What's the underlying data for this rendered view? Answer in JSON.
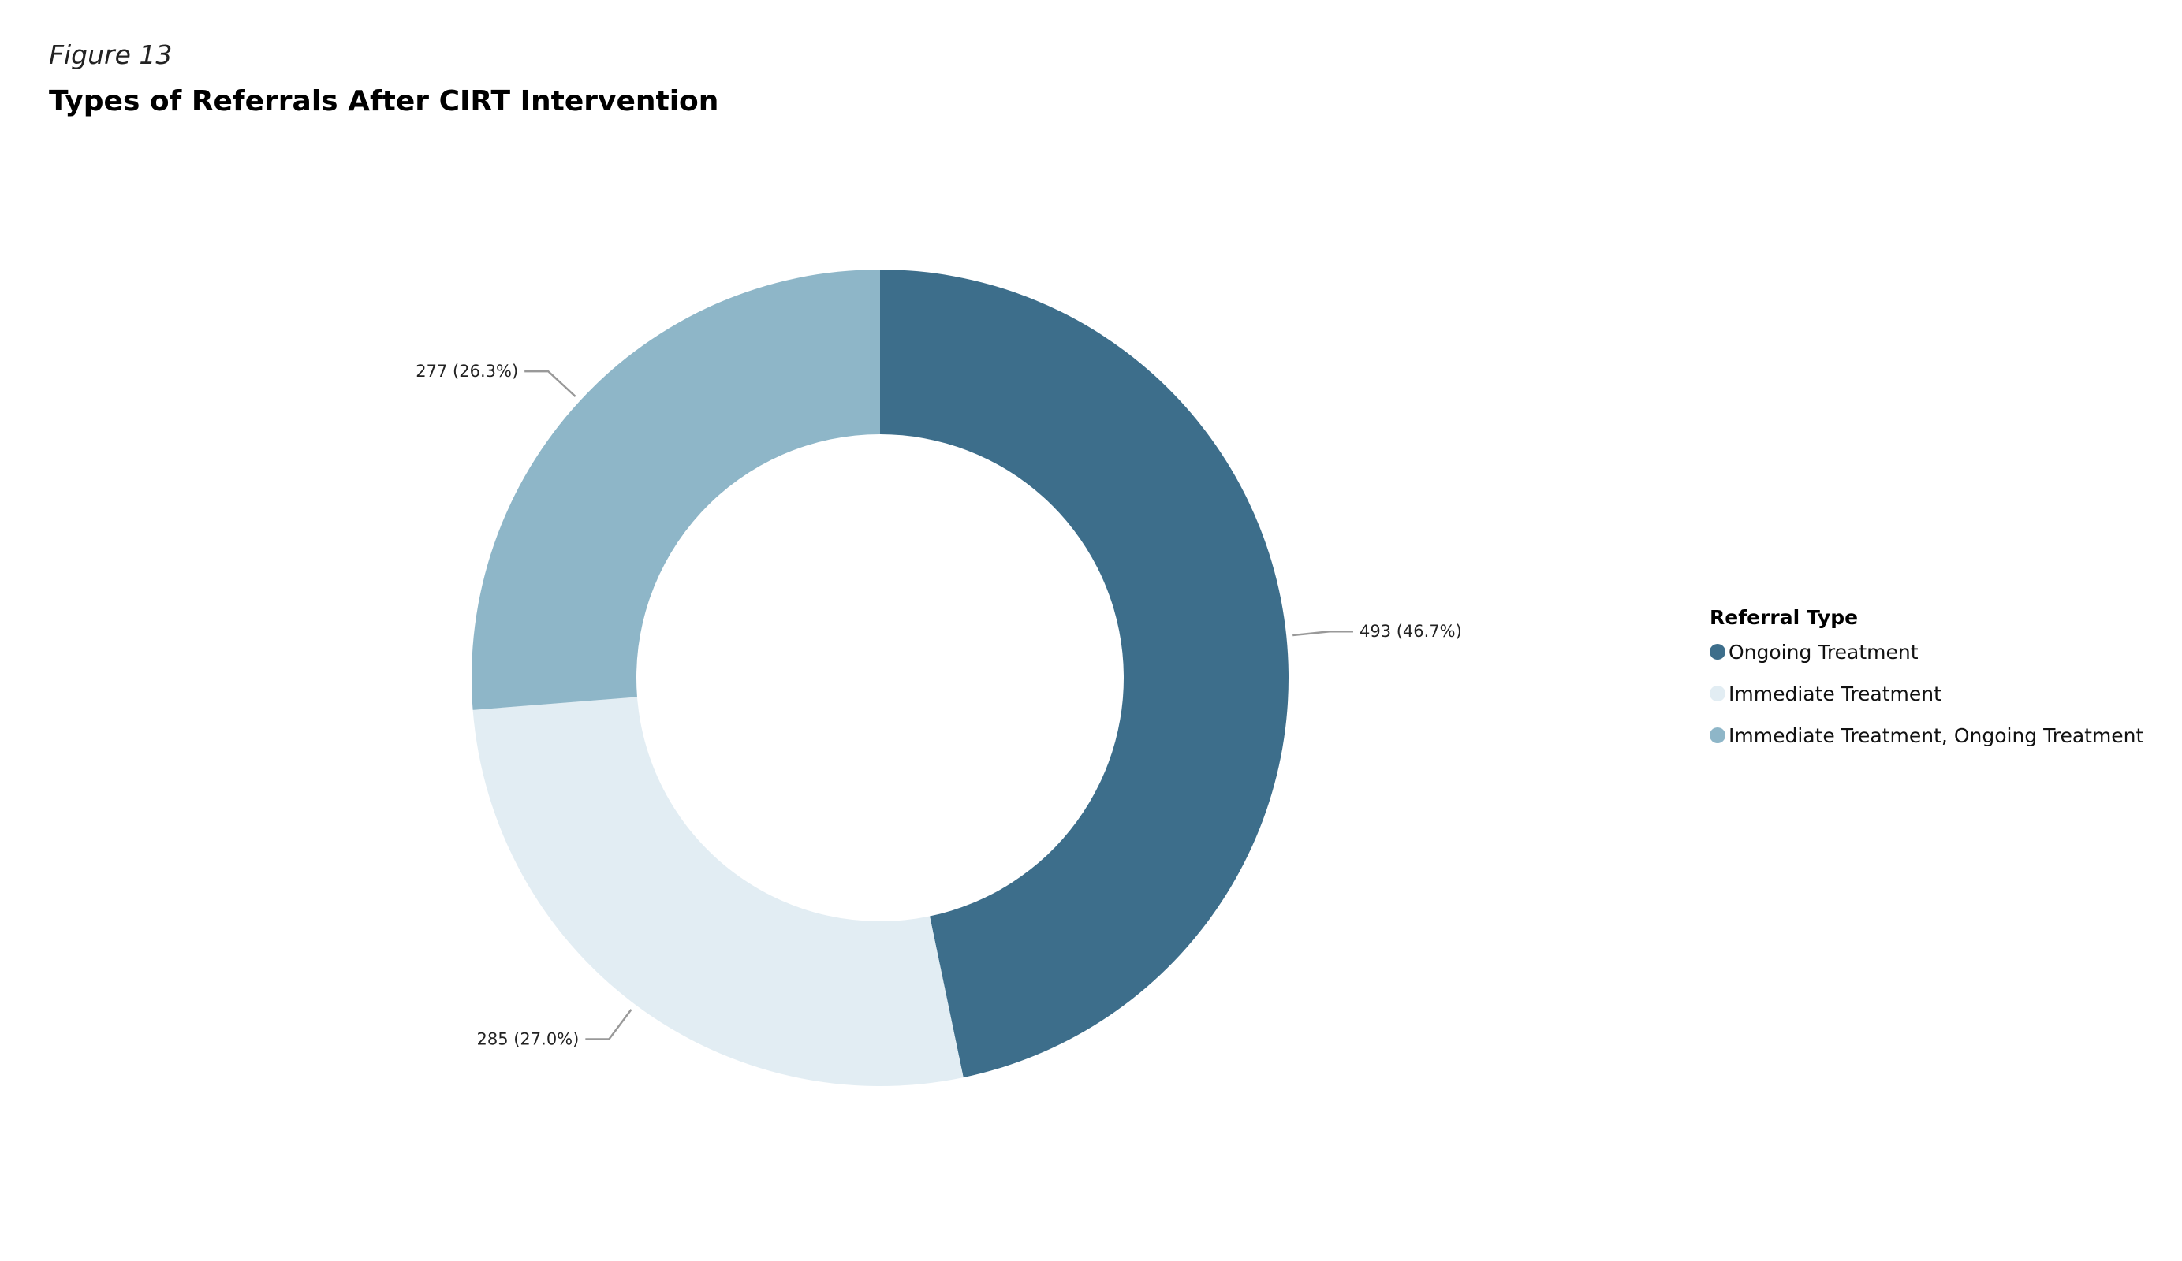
{
  "figure_label": "Figure 13",
  "chart_data": {
    "type": "pie",
    "variant": "donut",
    "title": "Types of Referrals After CIRT Intervention",
    "legend": {
      "title": "Referral Type",
      "position": "right"
    },
    "series": [
      {
        "name": "Ongoing Treatment",
        "value": 493,
        "percent": 46.7,
        "label": "493 (46.7%)",
        "color": "#3d6e8b"
      },
      {
        "name": "Immediate Treatment",
        "value": 285,
        "percent": 27.0,
        "label": "285 (27.0%)",
        "color": "#e2edf3"
      },
      {
        "name": "Immediate Treatment, Ongoing Treatment",
        "value": 277,
        "percent": 26.3,
        "label": "277 (26.3%)",
        "color": "#8eb6c8"
      }
    ]
  }
}
